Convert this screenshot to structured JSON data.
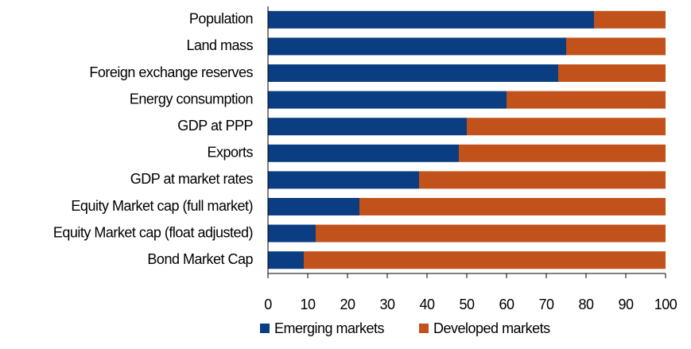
{
  "chart_data": {
    "type": "barh_stacked",
    "categories": [
      "Population",
      "Land mass",
      "Foreign exchange reserves",
      "Energy consumption",
      "GDP at PPP",
      "Exports",
      "GDP at market rates",
      "Equity Market cap (full market)",
      "Equity Market cap (float adjusted)",
      "Bond Market Cap"
    ],
    "series": [
      {
        "name": "Emerging markets",
        "color": "#0b3d82",
        "values": [
          82,
          75,
          73,
          60,
          50,
          48,
          38,
          23,
          12,
          9
        ]
      },
      {
        "name": "Developed markets",
        "color": "#c1521b",
        "values": [
          18,
          25,
          27,
          40,
          50,
          52,
          62,
          77,
          88,
          91
        ]
      }
    ],
    "xlim": [
      0,
      100
    ],
    "xticks": [
      0,
      10,
      20,
      30,
      40,
      50,
      60,
      70,
      80,
      90,
      100
    ],
    "legend": "bottom",
    "grid": false
  }
}
